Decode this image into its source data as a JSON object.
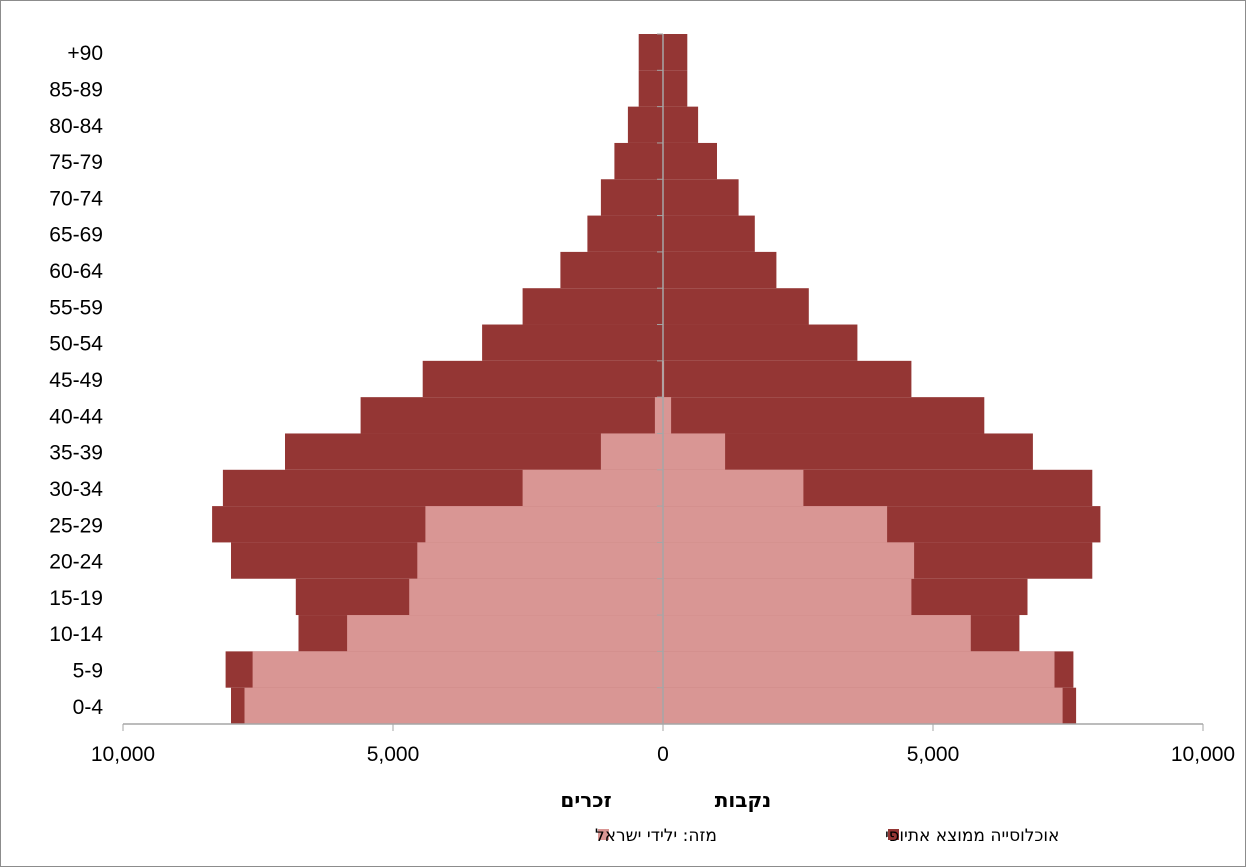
{
  "chart_data": {
    "type": "bar",
    "orientation": "horizontal",
    "subtype": "population-pyramid",
    "categories": [
      "0-4",
      "5-9",
      "10-14",
      "15-19",
      "20-24",
      "25-29",
      "30-34",
      "35-39",
      "40-44",
      "45-49",
      "50-54",
      "55-59",
      "60-64",
      "65-69",
      "70-74",
      "75-79",
      "80-84",
      "85-89",
      "+90"
    ],
    "series": [
      {
        "name": "אוכלוסייה  ממוצא אתיופי",
        "color": "#943634",
        "male": [
          8000,
          8100,
          6750,
          6800,
          8000,
          8350,
          8150,
          7000,
          5600,
          4450,
          3350,
          2600,
          1900,
          1400,
          1150,
          900,
          650,
          450,
          450
        ],
        "female": [
          7650,
          7600,
          6600,
          6750,
          7950,
          8100,
          7950,
          6850,
          5950,
          4600,
          3600,
          2700,
          2100,
          1700,
          1400,
          1000,
          650,
          450,
          450
        ]
      },
      {
        "name": "מזה:  ילידי  ישראל",
        "color": "#d99694",
        "male": [
          7750,
          7600,
          5850,
          4700,
          4550,
          4400,
          2600,
          1150,
          150,
          20,
          0,
          0,
          0,
          0,
          0,
          0,
          0,
          0,
          0
        ],
        "female": [
          7400,
          7250,
          5700,
          4600,
          4650,
          4150,
          2600,
          1150,
          150,
          20,
          0,
          0,
          0,
          0,
          0,
          0,
          0,
          0,
          0
        ]
      }
    ],
    "x_tick_labels": [
      "10,000",
      "5,000",
      "0",
      "5,000",
      "10,000"
    ],
    "xlim": [
      -10000,
      10000
    ],
    "side_labels": {
      "left": "זכרים",
      "right": "נקבות"
    },
    "legend_position": "bottom",
    "grid": false,
    "axis_color": "#a6a6a6"
  }
}
